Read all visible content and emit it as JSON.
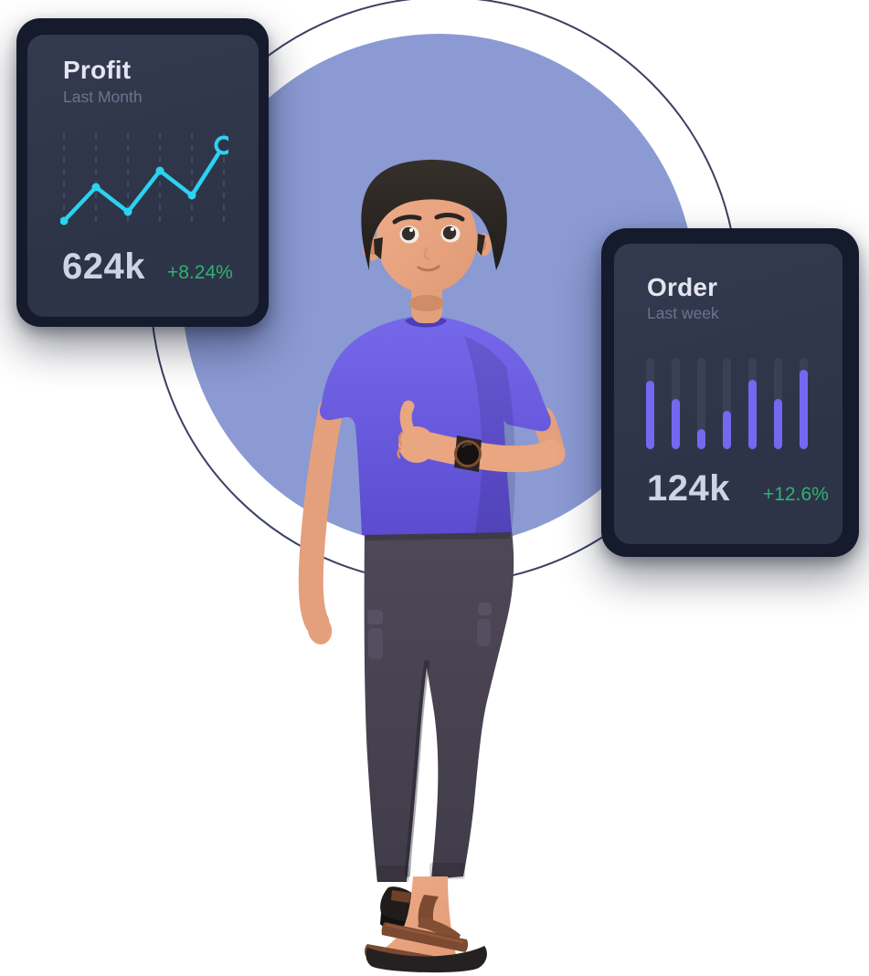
{
  "profit_card": {
    "title": "Profit",
    "subtitle": "Last Month",
    "value": "624k",
    "delta": "+8.24%"
  },
  "order_card": {
    "title": "Order",
    "subtitle": "Last week",
    "value": "124k",
    "delta": "+12.6%"
  },
  "chart_data": [
    {
      "type": "line",
      "card": "profit",
      "title": "Profit",
      "subtitle": "Last Month",
      "x": [
        1,
        2,
        3,
        4,
        5,
        6
      ],
      "values": [
        4,
        41,
        14,
        59,
        32,
        87
      ],
      "ylim": [
        0,
        100
      ],
      "grid": "dashed-vertical-per-point",
      "last_point_style": "open-ring",
      "legend": "none"
    },
    {
      "type": "bar",
      "card": "order",
      "title": "Order",
      "subtitle": "Last week",
      "categories": [
        "1",
        "2",
        "3",
        "4",
        "5",
        "6",
        "7"
      ],
      "values": [
        75,
        55,
        22,
        42,
        76,
        55,
        87
      ],
      "ylim": [
        0,
        100
      ],
      "track": "full-height-rounded",
      "legend": "none"
    }
  ],
  "colors": {
    "circle_fill": "#8B9AD3",
    "circle_outline": "#3C4161",
    "card_frame": "#151A2C",
    "card_bg": "#2E3447",
    "title_text": "#E3E6F0",
    "subtitle_text": "#6C7290",
    "value_text": "#CFD4E4",
    "positive_green": "#2FB273",
    "line_cyan": "#2BD2F1",
    "gridline": "#4A5168",
    "bar_purple": "#7468F0",
    "bar_track": "#3A4056",
    "shirt_purple": "#6A5CDE",
    "pants_gray": "#474150",
    "skin_tone": "#EAA581",
    "hair_dark": "#2B2622",
    "sandal_brown": "#7C4A31"
  },
  "illustration": {
    "description": "3D cartoon man with dark swept hair wearing a purple t-shirt, dark jogger pants and brown sandals, giving a thumbs-up with a wristwatch on his raised arm, standing in front of a large periwinkle circle with a thin outlined circle"
  }
}
